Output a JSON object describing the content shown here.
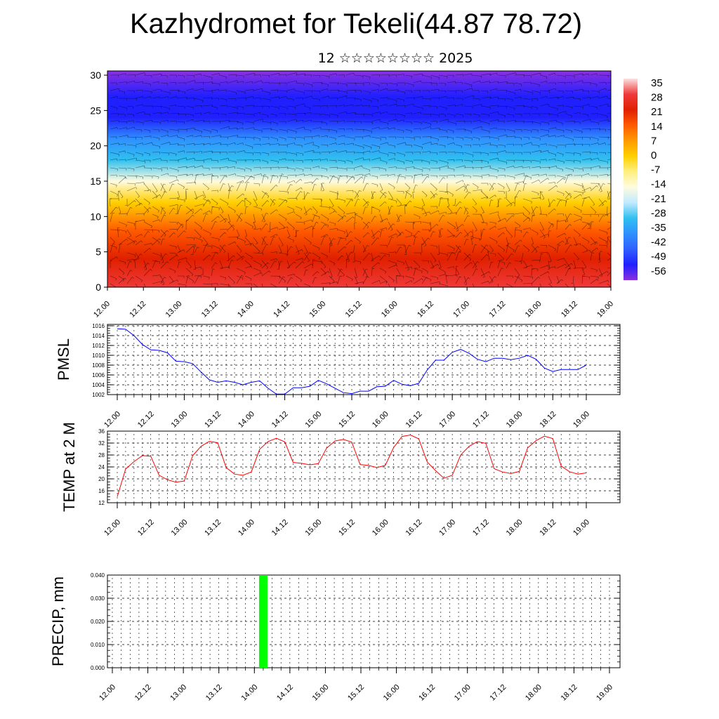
{
  "title": "Kazhydromet for Tekeli(44.87 78.72)",
  "subtitle": "12 ☆☆☆☆☆☆☆☆ 2025",
  "time_ticks": [
    "12.00",
    "12.12",
    "13.00",
    "13.12",
    "14.00",
    "14.12",
    "15.00",
    "15.12",
    "16.00",
    "16.12",
    "17.00",
    "17.12",
    "18.00",
    "18.12",
    "19.00"
  ],
  "chart_data": [
    {
      "type": "heatmap",
      "yticks": [
        0,
        5,
        10,
        15,
        20,
        25,
        30
      ],
      "ylim": [
        0,
        30.6
      ],
      "colorbar": {
        "labels": [
          "35",
          "28",
          "21",
          "14",
          "7",
          "0",
          "-7",
          "-14",
          "-21",
          "-28",
          "-35",
          "-42",
          "-49",
          "-56"
        ],
        "colors": [
          "#fbe0e0",
          "#f03a3a",
          "#e02000",
          "#ff5a00",
          "#ff9a00",
          "#ffd000",
          "#fff080",
          "#fffbe0",
          "#c0eaff",
          "#30c0f0",
          "#3090ff",
          "#3060ff",
          "#2020ff",
          "#8a30e0"
        ]
      },
      "overlay": "wind barbs",
      "level_profile": [
        {
          "level": 0,
          "value": 30
        },
        {
          "level": 4,
          "value": 24
        },
        {
          "level": 8,
          "value": 14
        },
        {
          "level": 12,
          "value": 2
        },
        {
          "level": 15,
          "value": -12
        },
        {
          "level": 18,
          "value": -28
        },
        {
          "level": 21,
          "value": -35
        },
        {
          "level": 24,
          "value": -46
        },
        {
          "level": 27,
          "value": -52
        },
        {
          "level": 30.6,
          "value": -58
        }
      ]
    },
    {
      "type": "line",
      "ylabel": "PMSL",
      "ylim": [
        1002,
        1016
      ],
      "yticks": [
        1002,
        1004,
        1006,
        1008,
        1010,
        1012,
        1014,
        1016
      ],
      "x_start": 0,
      "x_step": 0.25,
      "color": "#0000ff",
      "values": [
        1015.4,
        1015.3,
        1014.0,
        1012.2,
        1011.1,
        1011.0,
        1010.5,
        1008.8,
        1008.7,
        1008.3,
        1006.6,
        1005.0,
        1004.5,
        1004.8,
        1004.5,
        1004.0,
        1004.5,
        1004.8,
        1003.3,
        1002.1,
        1002.1,
        1003.4,
        1003.4,
        1003.7,
        1004.9,
        1004.2,
        1003.3,
        1002.4,
        1002.2,
        1002.7,
        1002.7,
        1003.6,
        1003.7,
        1004.9,
        1004.1,
        1003.8,
        1004.3,
        1007.0,
        1009.0,
        1009.0,
        1010.6,
        1011.2,
        1010.4,
        1009.2,
        1008.7,
        1009.4,
        1009.4,
        1009.1,
        1009.4,
        1010.0,
        1009.2,
        1007.4,
        1006.7,
        1007.1,
        1007.1,
        1007.1,
        1008.0
      ]
    },
    {
      "type": "line",
      "ylabel": "TEMP at 2 M",
      "ylim": [
        12,
        36
      ],
      "yticks": [
        12,
        16,
        20,
        24,
        28,
        32,
        36
      ],
      "x_start": 0,
      "x_step": 0.25,
      "color": "#ff0000",
      "values": [
        14.0,
        23.3,
        25.8,
        27.8,
        27.6,
        21.2,
        19.7,
        18.9,
        19.3,
        27.8,
        30.9,
        32.6,
        32.1,
        23.8,
        21.6,
        21.2,
        22.3,
        29.9,
        32.5,
        33.6,
        32.4,
        25.5,
        25.2,
        24.7,
        25.1,
        30.3,
        32.7,
        33.2,
        32.3,
        24.8,
        24.5,
        23.8,
        24.5,
        30.5,
        34.2,
        34.7,
        33.4,
        25.7,
        22.8,
        20.2,
        21.2,
        28.0,
        30.9,
        32.5,
        31.9,
        23.4,
        22.3,
        21.8,
        22.5,
        30.4,
        32.8,
        34.3,
        33.5,
        24.3,
        22.4,
        21.6,
        22.0
      ]
    },
    {
      "type": "bar",
      "ylabel": "PRECIP, mm",
      "ylim": [
        0,
        0.04
      ],
      "yticks": [
        "0.000",
        "0.010",
        "0.020",
        "0.030",
        "0.040"
      ],
      "color": "#00ff00",
      "bars": [
        {
          "time": 4.25,
          "value": 0.04
        }
      ]
    }
  ]
}
